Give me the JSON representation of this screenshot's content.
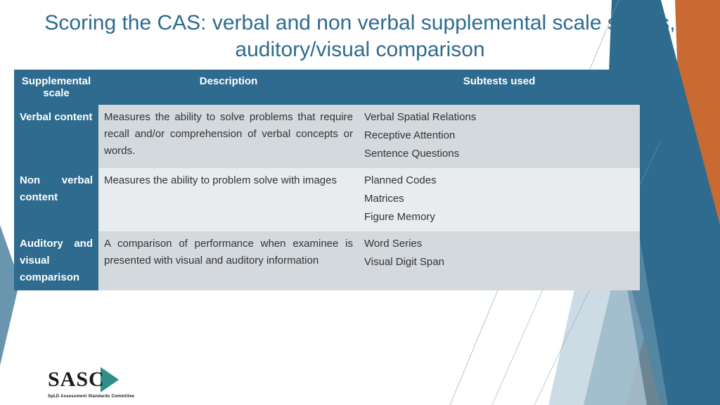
{
  "title": {
    "text": "Scoring the CAS: verbal and non verbal supplemental scale scores, auditory/visual comparison",
    "color": "#2e6b8f"
  },
  "table": {
    "header_bg": "#2e6b8f",
    "header_fg": "#ffffff",
    "row_even_bg": "#d3d9dd",
    "row_odd_bg": "#e8ecef",
    "cell_fg": "#333333",
    "columns": [
      "Supplemental scale",
      "Description",
      "Subtests used"
    ],
    "rows": [
      {
        "scale": "Verbal content",
        "desc": "Measures the ability to solve problems that require recall and/or comprehension of verbal concepts or words.",
        "subtests": [
          "Verbal Spatial Relations",
          "Receptive Attention",
          "Sentence Questions"
        ]
      },
      {
        "scale": "Non verbal content",
        "desc": "Measures the ability to problem solve with images",
        "subtests": [
          "Planned Codes",
          "Matrices",
          "Figure Memory"
        ]
      },
      {
        "scale": "Auditory and visual comparison",
        "desc": "A comparison of performance when examinee is presented with visual and auditory information",
        "subtests": [
          "Word Series",
          "Visual Digit Span"
        ]
      }
    ]
  },
  "logo": {
    "text": "SASC",
    "sub": "SpLD Assessment Standards Committee",
    "arrow_color": "#2e8f87"
  },
  "bg": {
    "teal_dark": "#2e6b8f",
    "teal_mid": "#5a8aa5",
    "teal_light": "#b8cdd8",
    "orange": "#c96a33",
    "line": "#7aa0b5"
  }
}
